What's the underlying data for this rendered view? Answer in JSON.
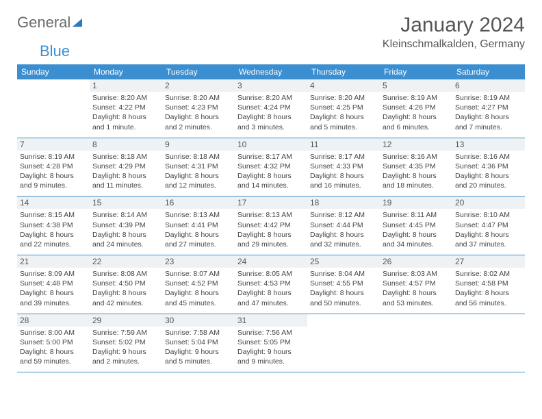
{
  "logo": {
    "general": "General",
    "blue": "Blue"
  },
  "title": "January 2024",
  "location": "Kleinschmalkalden, Germany",
  "header_bg": "#3b8ed0",
  "header_text_color": "#ffffff",
  "daynum_bg": "#eef2f5",
  "week_border_color": "#3b8ed0",
  "text_color": "#444444",
  "title_color": "#555555",
  "day_headers": [
    "Sunday",
    "Monday",
    "Tuesday",
    "Wednesday",
    "Thursday",
    "Friday",
    "Saturday"
  ],
  "weeks": [
    [
      {
        "empty": true
      },
      {
        "num": "1",
        "sunrise": "8:20 AM",
        "sunset": "4:22 PM",
        "daylight": "8 hours and 1 minute."
      },
      {
        "num": "2",
        "sunrise": "8:20 AM",
        "sunset": "4:23 PM",
        "daylight": "8 hours and 2 minutes."
      },
      {
        "num": "3",
        "sunrise": "8:20 AM",
        "sunset": "4:24 PM",
        "daylight": "8 hours and 3 minutes."
      },
      {
        "num": "4",
        "sunrise": "8:20 AM",
        "sunset": "4:25 PM",
        "daylight": "8 hours and 5 minutes."
      },
      {
        "num": "5",
        "sunrise": "8:19 AM",
        "sunset": "4:26 PM",
        "daylight": "8 hours and 6 minutes."
      },
      {
        "num": "6",
        "sunrise": "8:19 AM",
        "sunset": "4:27 PM",
        "daylight": "8 hours and 7 minutes."
      }
    ],
    [
      {
        "num": "7",
        "sunrise": "8:19 AM",
        "sunset": "4:28 PM",
        "daylight": "8 hours and 9 minutes."
      },
      {
        "num": "8",
        "sunrise": "8:18 AM",
        "sunset": "4:29 PM",
        "daylight": "8 hours and 11 minutes."
      },
      {
        "num": "9",
        "sunrise": "8:18 AM",
        "sunset": "4:31 PM",
        "daylight": "8 hours and 12 minutes."
      },
      {
        "num": "10",
        "sunrise": "8:17 AM",
        "sunset": "4:32 PM",
        "daylight": "8 hours and 14 minutes."
      },
      {
        "num": "11",
        "sunrise": "8:17 AM",
        "sunset": "4:33 PM",
        "daylight": "8 hours and 16 minutes."
      },
      {
        "num": "12",
        "sunrise": "8:16 AM",
        "sunset": "4:35 PM",
        "daylight": "8 hours and 18 minutes."
      },
      {
        "num": "13",
        "sunrise": "8:16 AM",
        "sunset": "4:36 PM",
        "daylight": "8 hours and 20 minutes."
      }
    ],
    [
      {
        "num": "14",
        "sunrise": "8:15 AM",
        "sunset": "4:38 PM",
        "daylight": "8 hours and 22 minutes."
      },
      {
        "num": "15",
        "sunrise": "8:14 AM",
        "sunset": "4:39 PM",
        "daylight": "8 hours and 24 minutes."
      },
      {
        "num": "16",
        "sunrise": "8:13 AM",
        "sunset": "4:41 PM",
        "daylight": "8 hours and 27 minutes."
      },
      {
        "num": "17",
        "sunrise": "8:13 AM",
        "sunset": "4:42 PM",
        "daylight": "8 hours and 29 minutes."
      },
      {
        "num": "18",
        "sunrise": "8:12 AM",
        "sunset": "4:44 PM",
        "daylight": "8 hours and 32 minutes."
      },
      {
        "num": "19",
        "sunrise": "8:11 AM",
        "sunset": "4:45 PM",
        "daylight": "8 hours and 34 minutes."
      },
      {
        "num": "20",
        "sunrise": "8:10 AM",
        "sunset": "4:47 PM",
        "daylight": "8 hours and 37 minutes."
      }
    ],
    [
      {
        "num": "21",
        "sunrise": "8:09 AM",
        "sunset": "4:48 PM",
        "daylight": "8 hours and 39 minutes."
      },
      {
        "num": "22",
        "sunrise": "8:08 AM",
        "sunset": "4:50 PM",
        "daylight": "8 hours and 42 minutes."
      },
      {
        "num": "23",
        "sunrise": "8:07 AM",
        "sunset": "4:52 PM",
        "daylight": "8 hours and 45 minutes."
      },
      {
        "num": "24",
        "sunrise": "8:05 AM",
        "sunset": "4:53 PM",
        "daylight": "8 hours and 47 minutes."
      },
      {
        "num": "25",
        "sunrise": "8:04 AM",
        "sunset": "4:55 PM",
        "daylight": "8 hours and 50 minutes."
      },
      {
        "num": "26",
        "sunrise": "8:03 AM",
        "sunset": "4:57 PM",
        "daylight": "8 hours and 53 minutes."
      },
      {
        "num": "27",
        "sunrise": "8:02 AM",
        "sunset": "4:58 PM",
        "daylight": "8 hours and 56 minutes."
      }
    ],
    [
      {
        "num": "28",
        "sunrise": "8:00 AM",
        "sunset": "5:00 PM",
        "daylight": "8 hours and 59 minutes."
      },
      {
        "num": "29",
        "sunrise": "7:59 AM",
        "sunset": "5:02 PM",
        "daylight": "9 hours and 2 minutes."
      },
      {
        "num": "30",
        "sunrise": "7:58 AM",
        "sunset": "5:04 PM",
        "daylight": "9 hours and 5 minutes."
      },
      {
        "num": "31",
        "sunrise": "7:56 AM",
        "sunset": "5:05 PM",
        "daylight": "9 hours and 9 minutes."
      },
      {
        "empty": true
      },
      {
        "empty": true
      },
      {
        "empty": true
      }
    ]
  ],
  "labels": {
    "sunrise": "Sunrise:",
    "sunset": "Sunset:",
    "daylight": "Daylight:"
  }
}
